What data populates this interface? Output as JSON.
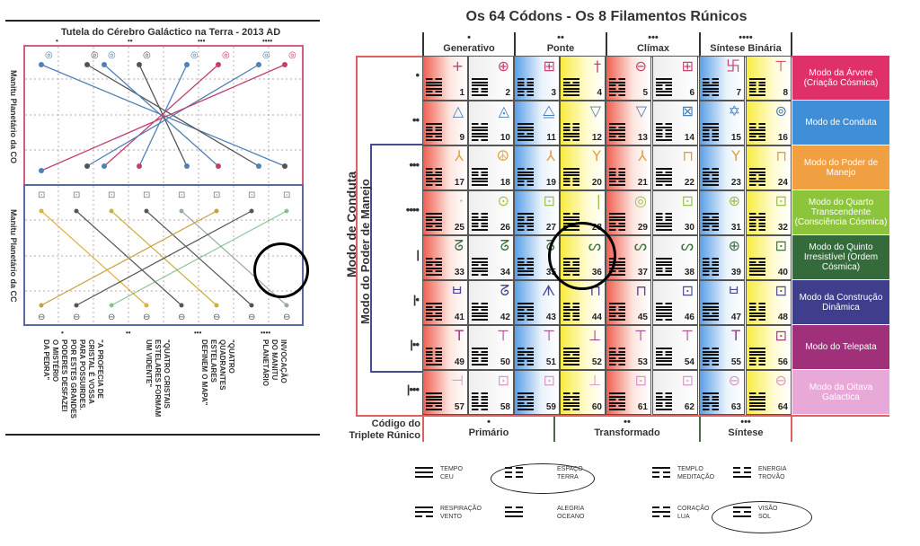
{
  "left": {
    "title": "Tutela do Cérebro Galáctico na Terra - 2013 AD",
    "top_dots": [
      "•",
      "••",
      "•••",
      "••••"
    ],
    "side_top": "Manitu Planetário da CO",
    "side_bottom": "Manitu Planetário da CC",
    "bottom_dots": [
      "•",
      "••",
      "•••",
      "••••"
    ],
    "bottom_texts": [
      "\"A PROFECIA DE\nCRISTAL É VOSSA\nPARA POSSUIRDES.\nPOR ESTES GRANDES\nPODERES DESFAZEI\nO MISTÉRIO\nDA PEDRA\"",
      "\"QUATRO CRISTAIS\nESTELARES FORMAM\nUM VIDENTE\"",
      "\"QUATRO\nQUADRANTES\nESTELARES\nDEFINEM O MAPA\"",
      "INVOCAÇÃO\nDO MANITU\nPLANETÁRIO"
    ],
    "colors": {
      "top": "#d06080",
      "bottom": "#5a6aa0",
      "pink": "#c04070",
      "blue": "#5080b8",
      "grey": "#555"
    }
  },
  "right": {
    "title": "Os 64 Códons - Os 8 Filamentos Rúnicos",
    "columns": [
      {
        "dots": "•",
        "label": "Generativo"
      },
      {
        "dots": "••",
        "label": "Ponte"
      },
      {
        "dots": "•••",
        "label": "Clímax"
      },
      {
        "dots": "••••",
        "label": "Síntese Binária"
      }
    ],
    "side_outer": "Modo de Conduta",
    "side_inner": "Modo do Poder de Manejo",
    "row_markers": [
      "•",
      "••",
      "•••",
      "••••",
      "|",
      "|•",
      "|••",
      "|•••"
    ],
    "runes": [
      "+",
      "⊕",
      "⊞",
      "†",
      "⊖",
      "⊞",
      "卐",
      "⊤",
      "△",
      "◬",
      "⧋",
      "▽",
      "▽",
      "⊠",
      "✡",
      "⊚",
      "⅄",
      "☮",
      "⅄",
      "Y",
      "⅄",
      "⊓",
      "Y",
      "⊓",
      "·",
      "⊙",
      "⊡",
      "|",
      "◎",
      "⊡",
      "⊕",
      "⊡",
      "ᘔ",
      "ᘔ",
      "ᘔ",
      "ᔕ",
      "ᔕ",
      "ᔕ",
      "⊕",
      "⊡",
      "ㅂ",
      "ᘔ",
      "ᗑ",
      "⊓",
      "⊓",
      "⊡",
      "ㅂ",
      "⊡",
      "T",
      "⊤",
      "⊤",
      "⊥",
      "⊤",
      "⊤",
      "T",
      "⊡",
      "⊣",
      "⊡",
      "⊡",
      "⊥",
      "⊡",
      "⊡",
      "⊖",
      "⊖"
    ],
    "row_colors": [
      "#c8406e",
      "#4a80b8",
      "#e0a040",
      "#9cc050",
      "#3e7040",
      "#4a4a90",
      "#9a3e80",
      "#d898c8"
    ],
    "column_bg": [
      "red",
      "white",
      "blue",
      "yellow",
      "red",
      "white",
      "blue",
      "yellow"
    ],
    "modes": [
      {
        "label": "Modo da Árvore (Criação Cósmica)",
        "color": "#e0306a"
      },
      {
        "label": "Modo de Conduta",
        "color": "#3f8fd8"
      },
      {
        "label": "Modo do Poder de Manejo",
        "color": "#f0a040"
      },
      {
        "label": "Modo do Quarto Transcendente (Consciência Cósmica)",
        "color": "#8cc43c"
      },
      {
        "label": "Modo do Quinto Irresistível (Ordem Cósmica)",
        "color": "#356b3a"
      },
      {
        "label": "Modo da Construção Dinâmica",
        "color": "#3e3e8c"
      },
      {
        "label": "Modo do Telepata",
        "color": "#a0307a"
      },
      {
        "label": "Modo da Oitava Galactica",
        "color": "#e8a8d8"
      }
    ],
    "footer": {
      "label": "Código do Triplete Rúnico",
      "groups": [
        {
          "dots": "•",
          "label": "Primário"
        },
        {
          "dots": "••",
          "label": "Transformado"
        },
        {
          "dots": "•••",
          "label": "Síntese"
        }
      ]
    }
  },
  "legend": [
    {
      "lines": "yyy",
      "a": "TEMPO",
      "b": "CEU",
      "circled": false
    },
    {
      "lines": "nnn",
      "a": "ESPAÇO",
      "b": "TERRA",
      "circled": true
    },
    {
      "lines": "ynn",
      "a": "TEMPLO",
      "b": "MEDITAÇÃO",
      "circled": false
    },
    {
      "lines": "nny",
      "a": "ENERGIA",
      "b": "TROVÃO",
      "circled": false
    },
    {
      "lines": "yyn",
      "a": "RESPIRAÇÃO",
      "b": "VENTO",
      "circled": false
    },
    {
      "lines": "nyy",
      "a": "ALEGRIA",
      "b": "OCEANO",
      "circled": false
    },
    {
      "lines": "nyn",
      "a": "CORAÇÃO",
      "b": "LUA",
      "circled": false
    },
    {
      "lines": "yny",
      "a": "VISÃO",
      "b": "SOL",
      "circled": true
    }
  ]
}
